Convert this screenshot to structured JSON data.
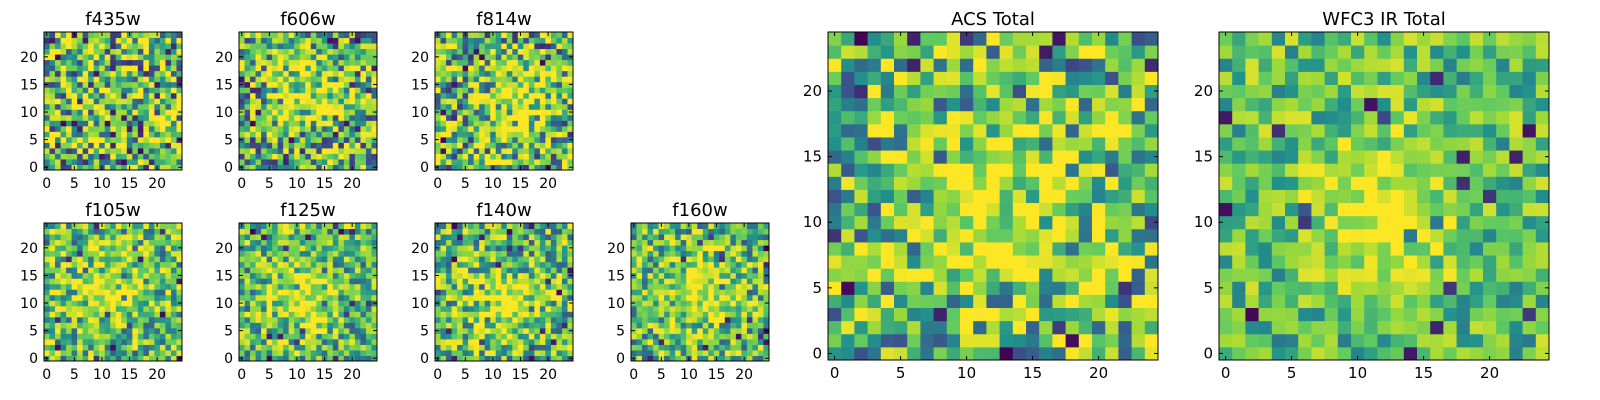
{
  "figure": {
    "description_free": true
  },
  "colormap": {
    "name": "viridis",
    "stops": [
      "#440154",
      "#3b528b",
      "#21918c",
      "#5ec962",
      "#a0da39",
      "#fde725"
    ]
  },
  "chart_data": [
    {
      "id": "f435w",
      "type": "heatmap",
      "title": "f435w",
      "grid": [
        25,
        25
      ],
      "xlim": [
        0,
        24
      ],
      "ylim": [
        0,
        24
      ],
      "xticks": [
        "0",
        "5",
        "10",
        "15",
        "20"
      ],
      "yticks": [
        "0",
        "5",
        "10",
        "15",
        "20"
      ],
      "peak": null,
      "noise": 0.55,
      "seed": 11
    },
    {
      "id": "f606w",
      "type": "heatmap",
      "title": "f606w",
      "grid": [
        25,
        25
      ],
      "xlim": [
        0,
        24
      ],
      "ylim": [
        0,
        24
      ],
      "xticks": [
        "0",
        "5",
        "10",
        "15",
        "20"
      ],
      "yticks": [
        "0",
        "5",
        "10",
        "15",
        "20"
      ],
      "peak": [
        11,
        14
      ],
      "noise": 0.5,
      "seed": 23
    },
    {
      "id": "f814w",
      "type": "heatmap",
      "title": "f814w",
      "grid": [
        25,
        25
      ],
      "xlim": [
        0,
        24
      ],
      "ylim": [
        0,
        24
      ],
      "xticks": [
        "0",
        "5",
        "10",
        "15",
        "20"
      ],
      "yticks": [
        "0",
        "5",
        "10",
        "15",
        "20"
      ],
      "peak": [
        13,
        12
      ],
      "noise": 0.5,
      "seed": 37
    },
    {
      "id": "f105w",
      "type": "heatmap",
      "title": "f105w",
      "grid": [
        25,
        25
      ],
      "xlim": [
        0,
        24
      ],
      "ylim": [
        0,
        24
      ],
      "xticks": [
        "0",
        "5",
        "10",
        "15",
        "20"
      ],
      "yticks": [
        "0",
        "5",
        "10",
        "15",
        "20"
      ],
      "peak": [
        11,
        13
      ],
      "noise": 0.4,
      "seed": 41
    },
    {
      "id": "f125w",
      "type": "heatmap",
      "title": "f125w",
      "grid": [
        25,
        25
      ],
      "xlim": [
        0,
        24
      ],
      "ylim": [
        0,
        24
      ],
      "xticks": [
        "0",
        "5",
        "10",
        "15",
        "20"
      ],
      "yticks": [
        "0",
        "5",
        "10",
        "15",
        "20"
      ],
      "peak": [
        11,
        11
      ],
      "noise": 0.4,
      "seed": 53
    },
    {
      "id": "f140w",
      "type": "heatmap",
      "title": "f140w",
      "grid": [
        25,
        25
      ],
      "xlim": [
        0,
        24
      ],
      "ylim": [
        0,
        24
      ],
      "xticks": [
        "0",
        "5",
        "10",
        "15",
        "20"
      ],
      "yticks": [
        "0",
        "5",
        "10",
        "15",
        "20"
      ],
      "peak": [
        12,
        10
      ],
      "noise": 0.4,
      "seed": 67
    },
    {
      "id": "f160w",
      "type": "heatmap",
      "title": "f160w",
      "grid": [
        25,
        25
      ],
      "xlim": [
        0,
        24
      ],
      "ylim": [
        0,
        24
      ],
      "xticks": [
        "0",
        "5",
        "10",
        "15",
        "20"
      ],
      "yticks": [
        "0",
        "5",
        "10",
        "15",
        "20"
      ],
      "peak": [
        12,
        12
      ],
      "noise": 0.4,
      "seed": 79
    },
    {
      "id": "acs-total",
      "type": "heatmap",
      "title": "ACS Total",
      "grid": [
        25,
        25
      ],
      "xlim": [
        0,
        24
      ],
      "ylim": [
        0,
        24
      ],
      "xticks": [
        "0",
        "5",
        "10",
        "15",
        "20"
      ],
      "yticks": [
        "0",
        "5",
        "10",
        "15",
        "20"
      ],
      "peak": [
        12,
        11
      ],
      "noise": 0.45,
      "seed": 97
    },
    {
      "id": "wfc3-ir-total",
      "type": "heatmap",
      "title": "WFC3 IR Total",
      "grid": [
        25,
        25
      ],
      "xlim": [
        0,
        24
      ],
      "ylim": [
        0,
        24
      ],
      "xticks": [
        "0",
        "5",
        "10",
        "15",
        "20"
      ],
      "yticks": [
        "0",
        "5",
        "10",
        "15",
        "20"
      ],
      "peak": [
        12,
        11
      ],
      "noise": 0.3,
      "seed": 131
    }
  ]
}
